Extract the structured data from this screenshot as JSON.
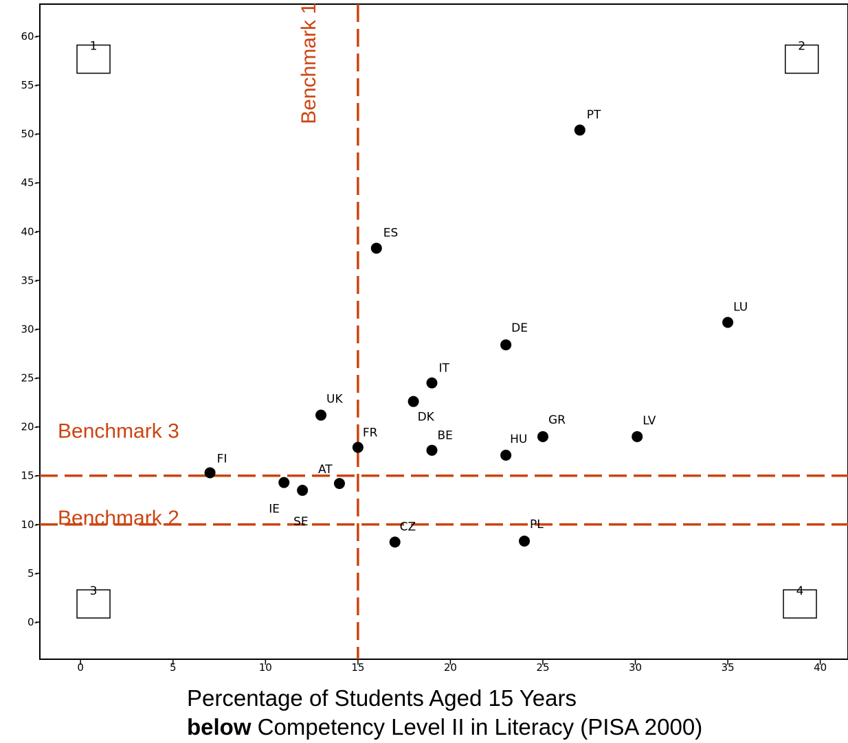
{
  "chart_data": {
    "type": "scatter",
    "xlim": [
      -2.2,
      41.5
    ],
    "ylim": [
      -3.8,
      63.3
    ],
    "x_ticks": [
      0,
      5,
      10,
      15,
      20,
      25,
      30,
      35,
      40
    ],
    "y_ticks": [
      0,
      5,
      10,
      15,
      20,
      25,
      30,
      35,
      40,
      45,
      50,
      55,
      60
    ],
    "x_tick_labels": [
      "0",
      "5",
      "10",
      "15",
      "20",
      "25",
      "30",
      "35",
      "40"
    ],
    "y_tick_labels": [
      "0-",
      "5-",
      "10-",
      "15-",
      "20-",
      "25-",
      "30-",
      "35-",
      "40-",
      "45-",
      "50-",
      "55-",
      "60-"
    ],
    "grid": false,
    "points": [
      {
        "label": "PT",
        "x": 27.0,
        "y": 50.4
      },
      {
        "label": "ES",
        "x": 16.0,
        "y": 38.3
      },
      {
        "label": "LU",
        "x": 35.0,
        "y": 30.7
      },
      {
        "label": "DE",
        "x": 23.0,
        "y": 28.4
      },
      {
        "label": "IT",
        "x": 19.0,
        "y": 24.5
      },
      {
        "label": "DK",
        "x": 18.0,
        "y": 22.6
      },
      {
        "label": "UK",
        "x": 13.0,
        "y": 21.2
      },
      {
        "label": "GR",
        "x": 25.0,
        "y": 19.0
      },
      {
        "label": "LV",
        "x": 30.1,
        "y": 19.0
      },
      {
        "label": "FR",
        "x": 15.0,
        "y": 17.9
      },
      {
        "label": "BE",
        "x": 19.0,
        "y": 17.6
      },
      {
        "label": "HU",
        "x": 23.0,
        "y": 17.1
      },
      {
        "label": "FI",
        "x": 7.0,
        "y": 15.3
      },
      {
        "label": "IE",
        "x": 11.0,
        "y": 14.3
      },
      {
        "label": "AT",
        "x": 14.0,
        "y": 14.2
      },
      {
        "label": "SE",
        "x": 12.0,
        "y": 13.5
      },
      {
        "label": "CZ",
        "x": 17.0,
        "y": 8.2
      },
      {
        "label": "PL",
        "x": 24.0,
        "y": 8.3
      }
    ],
    "benchmarks": [
      {
        "label": "Benchmark 1",
        "orientation": "vertical",
        "value": 15
      },
      {
        "label": "Benchmark 3",
        "orientation": "horizontal",
        "value": 15
      },
      {
        "label": "Benchmark 2",
        "orientation": "horizontal",
        "value": 10
      }
    ],
    "benchmark_color": "#cc4411",
    "point_color": "#000000",
    "quadrant_labels": [
      "1",
      "2",
      "3",
      "4"
    ],
    "xlabel_line1": "Percentage of Students Aged 15 Years",
    "xlabel_line2_bold": "below",
    "xlabel_line2_rest": " Competency Level II in Literacy (PISA 2000)"
  }
}
